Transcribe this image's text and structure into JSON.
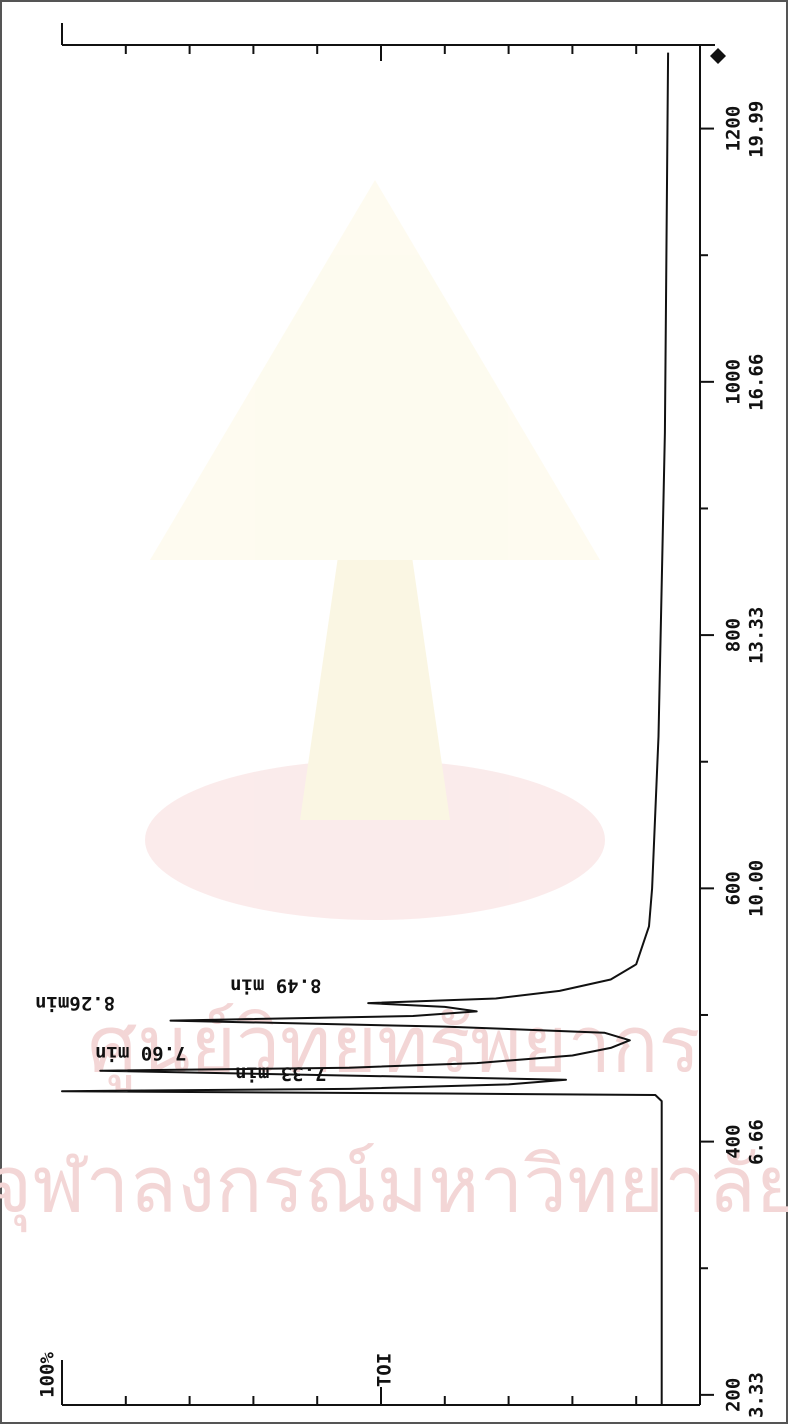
{
  "chart_data": {
    "type": "line",
    "color": "#111111",
    "x": [
      3.2,
      7.2,
      7.28,
      7.3,
      7.33,
      7.36,
      7.42,
      7.48,
      7.52,
      7.56,
      7.6,
      7.64,
      7.7,
      7.8,
      7.9,
      8.0,
      8.1,
      8.18,
      8.26,
      8.32,
      8.38,
      8.44,
      8.49,
      8.55,
      8.65,
      8.8,
      9.0,
      9.5,
      10.0,
      12.0,
      16.0,
      21.0
    ],
    "values": [
      6,
      6,
      7,
      40,
      100,
      55,
      30,
      21,
      45,
      70,
      94,
      55,
      35,
      20,
      14,
      11,
      15,
      40,
      83,
      45,
      35,
      40,
      52,
      32,
      22,
      14,
      10,
      8,
      7.5,
      6.5,
      5.5,
      5
    ],
    "xlim": [
      3.2,
      21.1
    ],
    "xticks": [
      3.33,
      6.66,
      {
        "value": 10,
        "label": "10.00"
      },
      13.33,
      16.66,
      19.99
    ],
    "x2lim": [
      192,
      1266
    ],
    "x2ticks": [
      200,
      400,
      600,
      800,
      1000,
      1200
    ],
    "x2minorticks": [
      300,
      500,
      700,
      900,
      1100
    ],
    "ylim": [
      0,
      100
    ],
    "yticks": [
      {
        "value": 100,
        "label": "100%"
      }
    ],
    "yminorticks": [
      10,
      20,
      30,
      40,
      50,
      60,
      70,
      80,
      90
    ],
    "y_label": "TOI",
    "annotations": [
      {
        "text": "7.33 min",
        "x": 7.33
      },
      {
        "text": "7.60 min",
        "x": 7.6
      },
      {
        "text": "8.26min",
        "x": 8.26
      },
      {
        "text": "8.49 min",
        "x": 8.49
      }
    ],
    "watermark": [
      "ศูนย์วิทยทรัพยากร",
      "จุฬาลงกรณ์มหาวิทยาลัย"
    ]
  }
}
